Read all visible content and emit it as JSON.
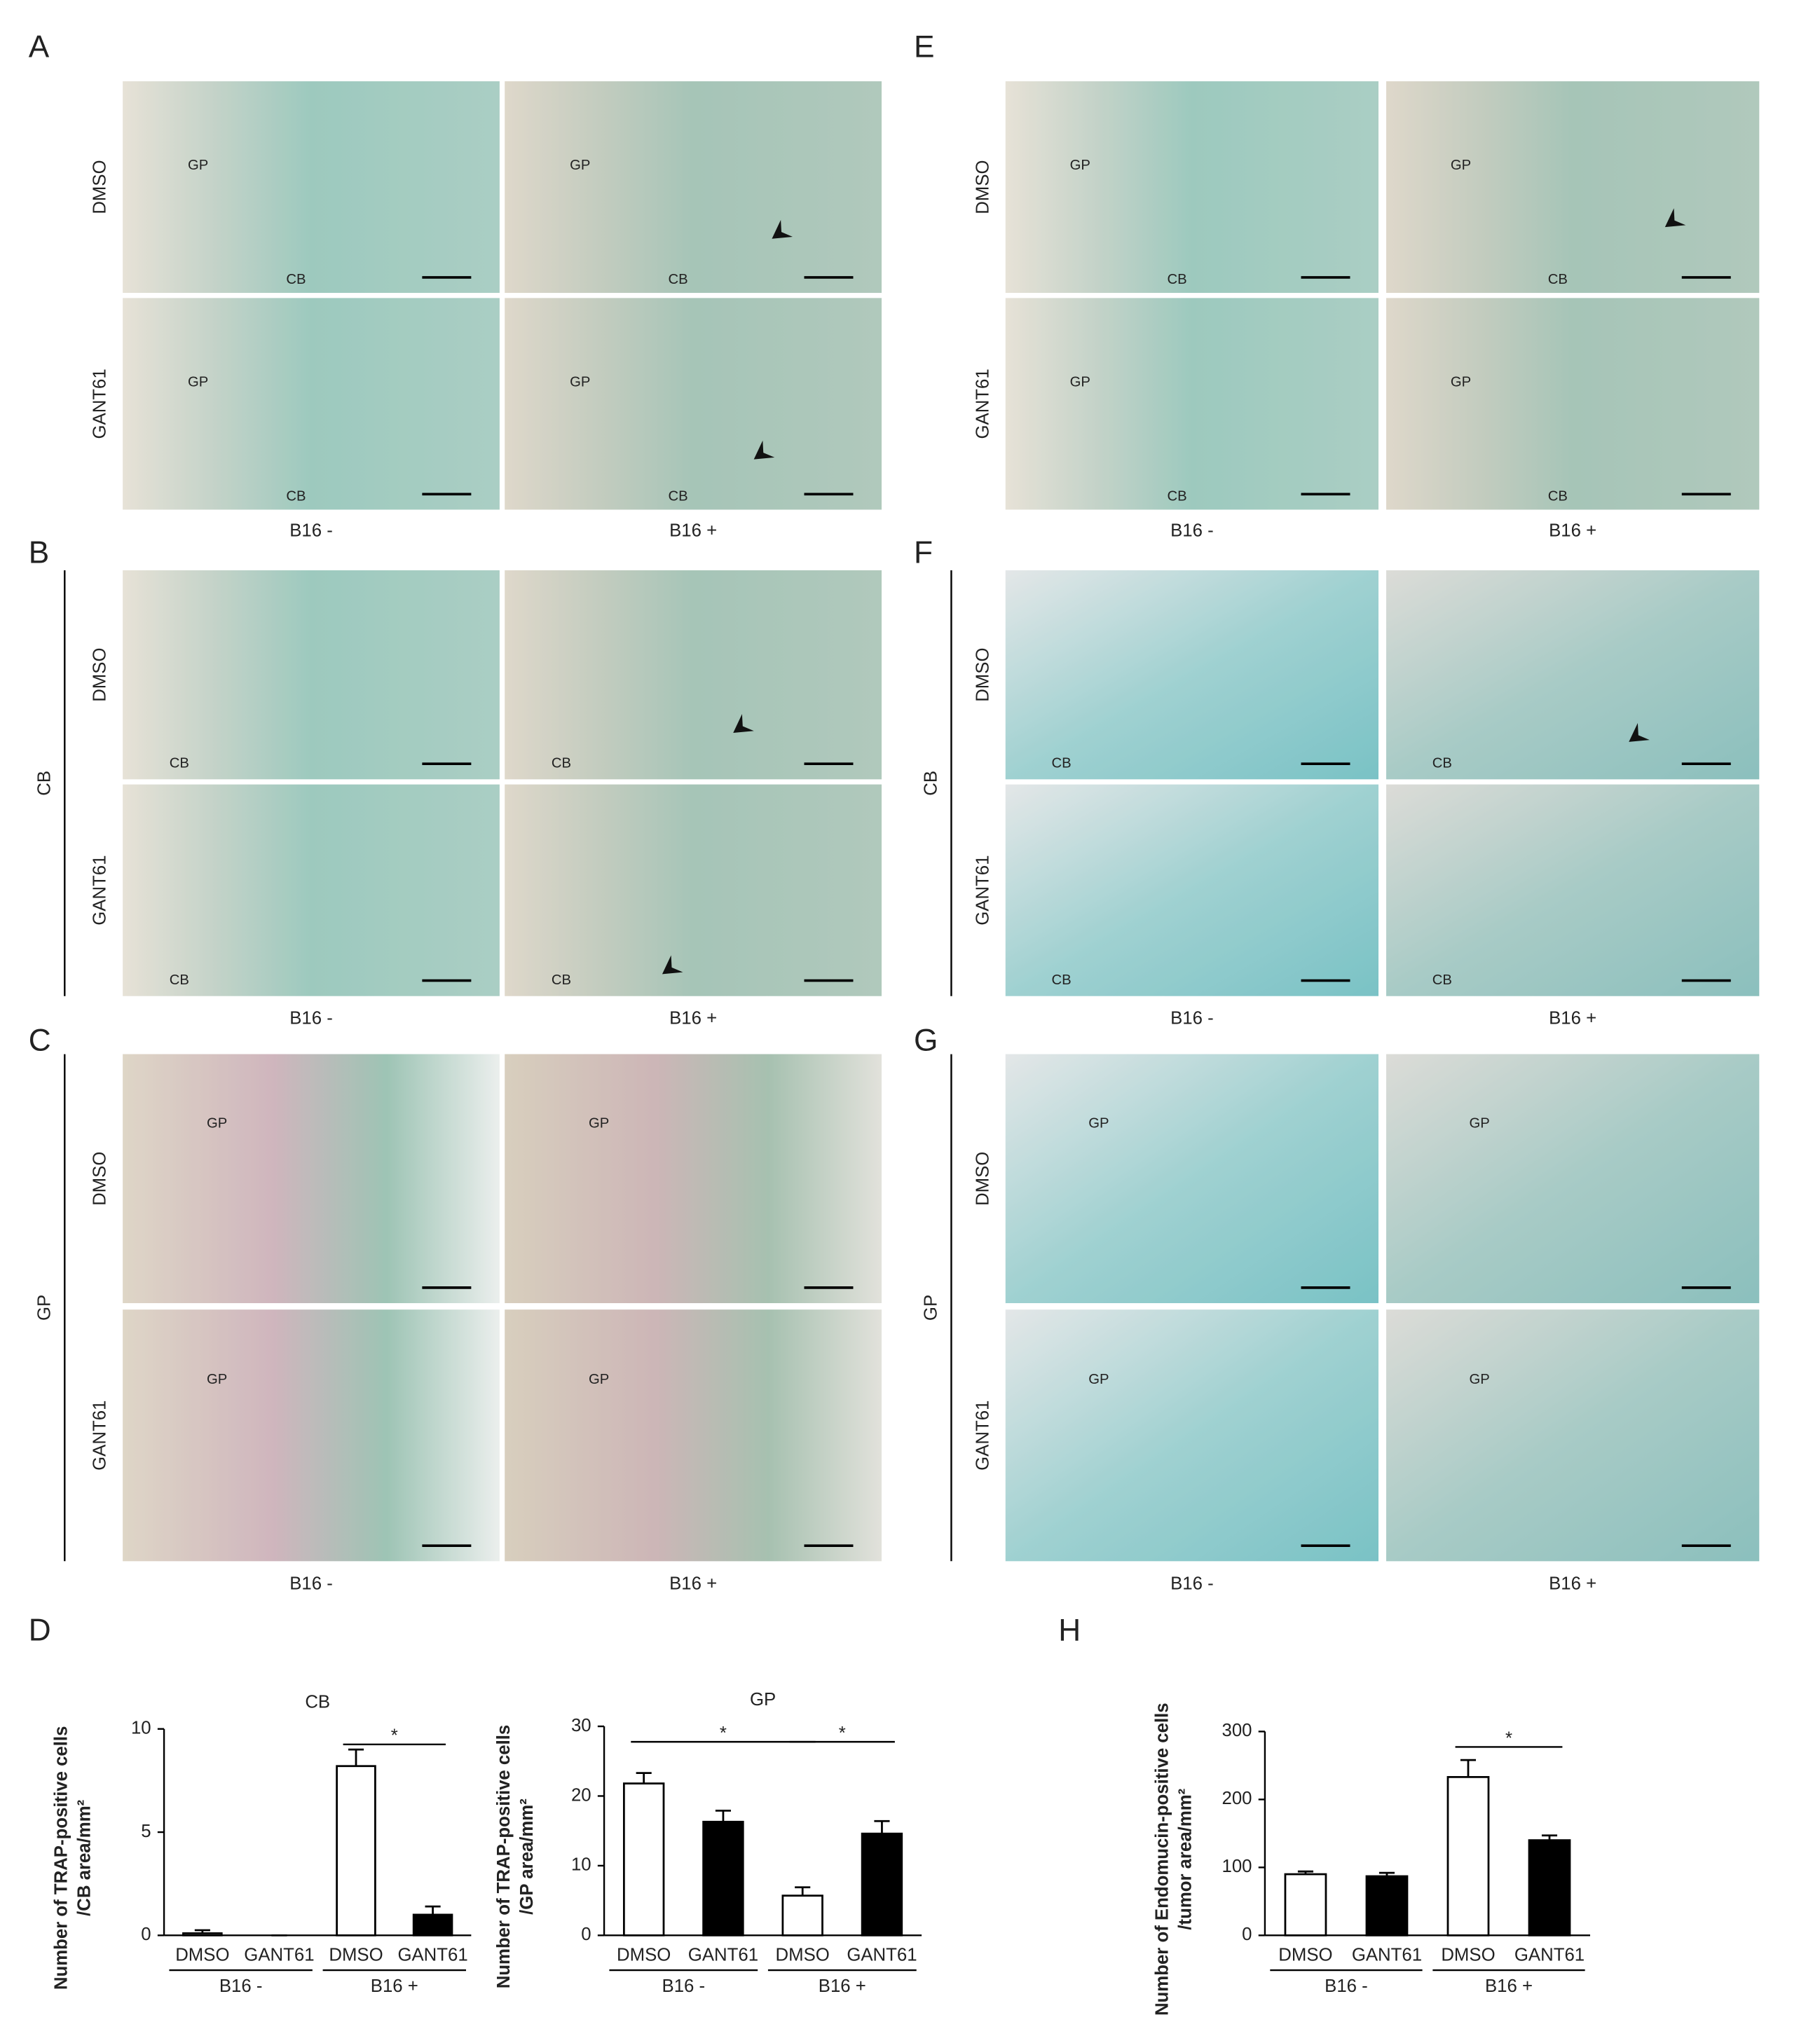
{
  "panels": [
    {
      "letter": "A",
      "rows": [
        "DMSO",
        "GANT61"
      ],
      "cols": [
        "B16 -",
        "B16 +"
      ],
      "tags": [
        [
          "GP",
          "CB"
        ],
        [
          "GP",
          "CB"
        ],
        [
          "GP",
          "CB"
        ],
        [
          "GP",
          "CB"
        ]
      ]
    },
    {
      "letter": "B",
      "side": "CB",
      "rows": [
        "DMSO",
        "GANT61"
      ],
      "cols": [
        "B16 -",
        "B16 +"
      ],
      "tags": [
        [
          "CB"
        ],
        [
          "CB"
        ],
        [
          "CB"
        ],
        [
          "CB"
        ]
      ]
    },
    {
      "letter": "C",
      "side": "GP",
      "rows": [
        "DMSO",
        "GANT61"
      ],
      "cols": [
        "B16 -",
        "B16 +"
      ],
      "tags": [
        [
          "GP"
        ],
        [
          "GP"
        ],
        [
          "GP"
        ],
        [
          "GP"
        ]
      ]
    },
    {
      "letter": "E",
      "rows": [
        "DMSO",
        "GANT61"
      ],
      "cols": [
        "B16 -",
        "B16 +"
      ],
      "tags": [
        [
          "GP",
          "CB"
        ],
        [
          "GP",
          "CB"
        ],
        [
          "GP",
          "CB"
        ],
        [
          "GP",
          "CB"
        ]
      ]
    },
    {
      "letter": "F",
      "side": "CB",
      "rows": [
        "DMSO",
        "GANT61"
      ],
      "cols": [
        "B16 -",
        "B16 +"
      ],
      "tags": [
        [
          "CB"
        ],
        [
          "CB"
        ],
        [
          "CB"
        ],
        [
          "CB"
        ]
      ]
    },
    {
      "letter": "G",
      "side": "GP",
      "rows": [
        "DMSO",
        "GANT61"
      ],
      "cols": [
        "B16 -",
        "B16 +"
      ],
      "tags": [
        [
          "GP"
        ],
        [
          "GP"
        ],
        [
          "GP"
        ],
        [
          "GP"
        ]
      ]
    }
  ],
  "chart_letters": [
    "D",
    "H"
  ],
  "chart_data": [
    {
      "type": "bar",
      "title": "CB",
      "ylabel": [
        "Number of TRAP-positive cells",
        "/CB area/mm²"
      ],
      "categories": [
        "DMSO",
        "GANT61",
        "DMSO",
        "GANT61"
      ],
      "groups": [
        "B16 -",
        "B16 +"
      ],
      "values": [
        0.1,
        0,
        8.2,
        1.0
      ],
      "errors": [
        0.15,
        0,
        0.8,
        0.4
      ],
      "colors": [
        "#ffffff",
        "#000000",
        "#ffffff",
        "#000000"
      ],
      "ylim": [
        0,
        10
      ],
      "yticks": [
        0,
        5,
        10
      ],
      "significance": [
        {
          "label": "*",
          "bars": [
            2,
            3
          ]
        }
      ]
    },
    {
      "type": "bar",
      "title": "GP",
      "ylabel": [
        "Number of TRAP-positive cells",
        "/GP area/mm²"
      ],
      "categories": [
        "DMSO",
        "GANT61",
        "DMSO",
        "GANT61"
      ],
      "groups": [
        "B16 -",
        "B16 +"
      ],
      "values": [
        21.8,
        16.3,
        5.7,
        14.6
      ],
      "errors": [
        1.5,
        1.6,
        1.2,
        1.8
      ],
      "colors": [
        "#ffffff",
        "#000000",
        "#ffffff",
        "#000000"
      ],
      "ylim": [
        0,
        30
      ],
      "yticks": [
        0,
        10,
        20,
        30
      ],
      "significance": [
        {
          "label": "*",
          "bars": [
            0,
            2
          ]
        },
        {
          "label": "*",
          "bars": [
            2,
            3
          ]
        }
      ]
    },
    {
      "type": "bar",
      "ylabel": [
        "Number of Endomucin-positive cells",
        "/tumor area/mm²"
      ],
      "categories": [
        "DMSO",
        "GANT61",
        "DMSO",
        "GANT61"
      ],
      "groups": [
        "B16 -",
        "B16 +"
      ],
      "values": [
        90,
        87,
        233,
        140
      ],
      "errors": [
        4,
        5,
        25,
        7
      ],
      "colors": [
        "#ffffff",
        "#000000",
        "#ffffff",
        "#000000"
      ],
      "ylim": [
        0,
        300
      ],
      "yticks": [
        0,
        100,
        200,
        300
      ],
      "significance": [
        {
          "label": "*",
          "bars": [
            2,
            3
          ]
        }
      ]
    }
  ]
}
